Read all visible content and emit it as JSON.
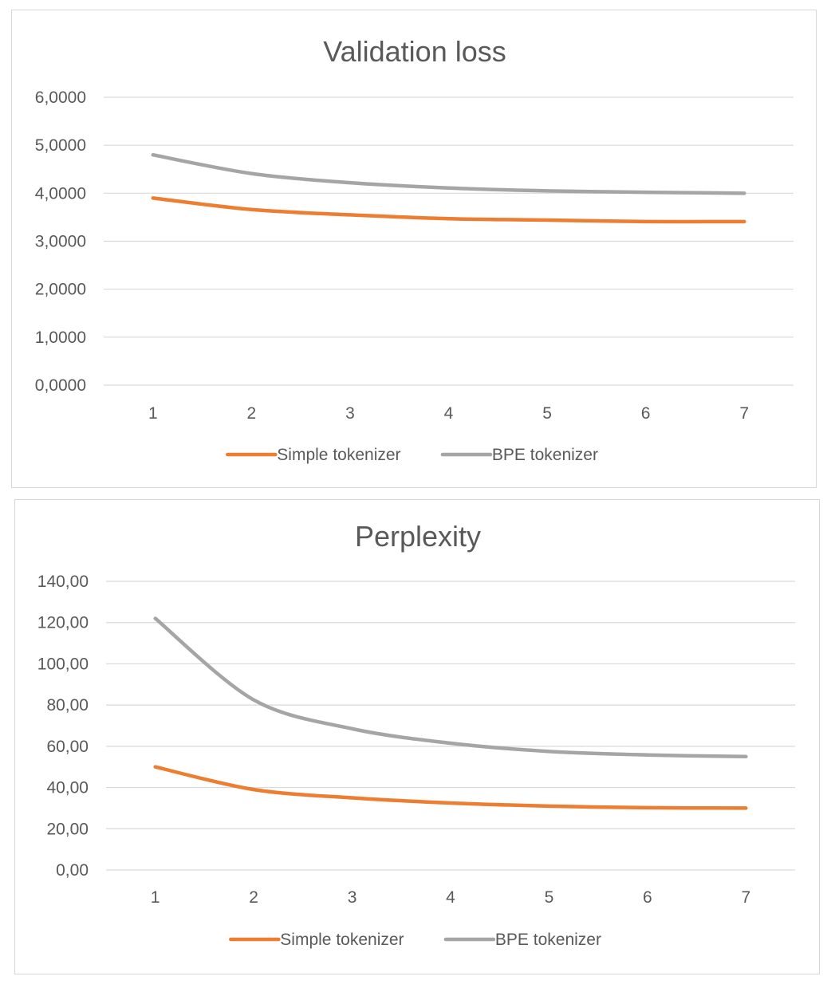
{
  "chart_data": [
    {
      "type": "line",
      "title": "Validation loss",
      "xlabel": "",
      "ylabel": "",
      "categories": [
        "1",
        "2",
        "3",
        "4",
        "5",
        "6",
        "7"
      ],
      "y_ticks": [
        "0,0000",
        "1,0000",
        "2,0000",
        "3,0000",
        "4,0000",
        "5,0000",
        "6,0000"
      ],
      "ylim": [
        0,
        6
      ],
      "grid": true,
      "legend_position": "bottom",
      "series": [
        {
          "name": "Simple tokenizer",
          "color": "#ED7D31",
          "values": [
            3.9,
            3.66,
            3.55,
            3.47,
            3.44,
            3.41,
            3.41
          ]
        },
        {
          "name": "BPE tokenizer",
          "color": "#A5A5A5",
          "values": [
            4.8,
            4.41,
            4.22,
            4.11,
            4.05,
            4.02,
            4.0
          ]
        }
      ]
    },
    {
      "type": "line",
      "title": "Perplexity",
      "xlabel": "",
      "ylabel": "",
      "categories": [
        "1",
        "2",
        "3",
        "4",
        "5",
        "6",
        "7"
      ],
      "y_ticks": [
        "0,00",
        "20,00",
        "40,00",
        "60,00",
        "80,00",
        "100,00",
        "120,00",
        "140,00"
      ],
      "ylim": [
        0,
        140
      ],
      "grid": true,
      "legend_position": "bottom",
      "series": [
        {
          "name": "Simple tokenizer",
          "color": "#ED7D31",
          "values": [
            50.0,
            39.0,
            35.0,
            32.5,
            31.0,
            30.2,
            30.0
          ]
        },
        {
          "name": "BPE tokenizer",
          "color": "#A5A5A5",
          "values": [
            122.0,
            82.5,
            68.5,
            61.5,
            57.5,
            55.8,
            55.0
          ]
        }
      ]
    }
  ]
}
